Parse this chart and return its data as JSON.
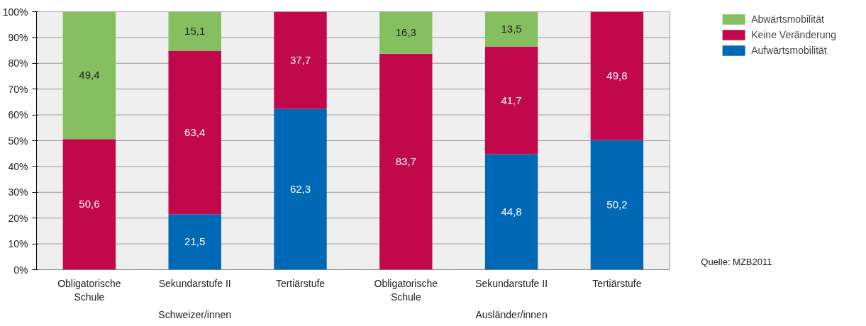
{
  "chart_data": {
    "type": "bar",
    "stacked": true,
    "categories": [
      "Obligatorische\nSchule",
      "Sekundarstufe II",
      "Tertiärstufe",
      "Obligatorische\nSchule",
      "Sekundarstufe II",
      "Tertiärstufe"
    ],
    "series": [
      {
        "name": "Aufwärtsmobilität",
        "color": "#0068b4",
        "values": [
          null,
          21.5,
          62.3,
          null,
          44.8,
          50.2
        ],
        "value_labels": [
          null,
          "21,5",
          "62,3",
          null,
          "44,8",
          "50,2"
        ]
      },
      {
        "name": "Keine Veränderung",
        "color": "#c0084a",
        "values": [
          50.6,
          63.4,
          37.7,
          83.7,
          41.7,
          49.8
        ],
        "value_labels": [
          "50,6",
          "63,4",
          "37,7",
          "83,7",
          "41,7",
          "49,8"
        ]
      },
      {
        "name": "Abwärtsmobilität",
        "color": "#86bf60",
        "values": [
          49.4,
          15.1,
          null,
          16.3,
          13.5,
          null
        ],
        "value_labels": [
          "49,4",
          "15,1",
          null,
          "16,3",
          "13,5",
          null
        ]
      }
    ],
    "ylim": [
      0,
      100
    ],
    "yticks": [
      {
        "value": 0,
        "label": "0%"
      },
      {
        "value": 10,
        "label": "10%"
      },
      {
        "value": 20,
        "label": "20%"
      },
      {
        "value": 30,
        "label": "30%"
      },
      {
        "value": 40,
        "label": "40%"
      },
      {
        "value": 50,
        "label": "50%"
      },
      {
        "value": 60,
        "label": "60%"
      },
      {
        "value": 70,
        "label": "70%"
      },
      {
        "value": 80,
        "label": "80%"
      },
      {
        "value": 90,
        "label": "90%"
      },
      {
        "value": 100,
        "label": "100%"
      }
    ],
    "grid": "y",
    "legend": "top right",
    "annotations": [
      "Schweizer/innen",
      "Ausländer/innen",
      "Quelle: MZB2011"
    ]
  }
}
